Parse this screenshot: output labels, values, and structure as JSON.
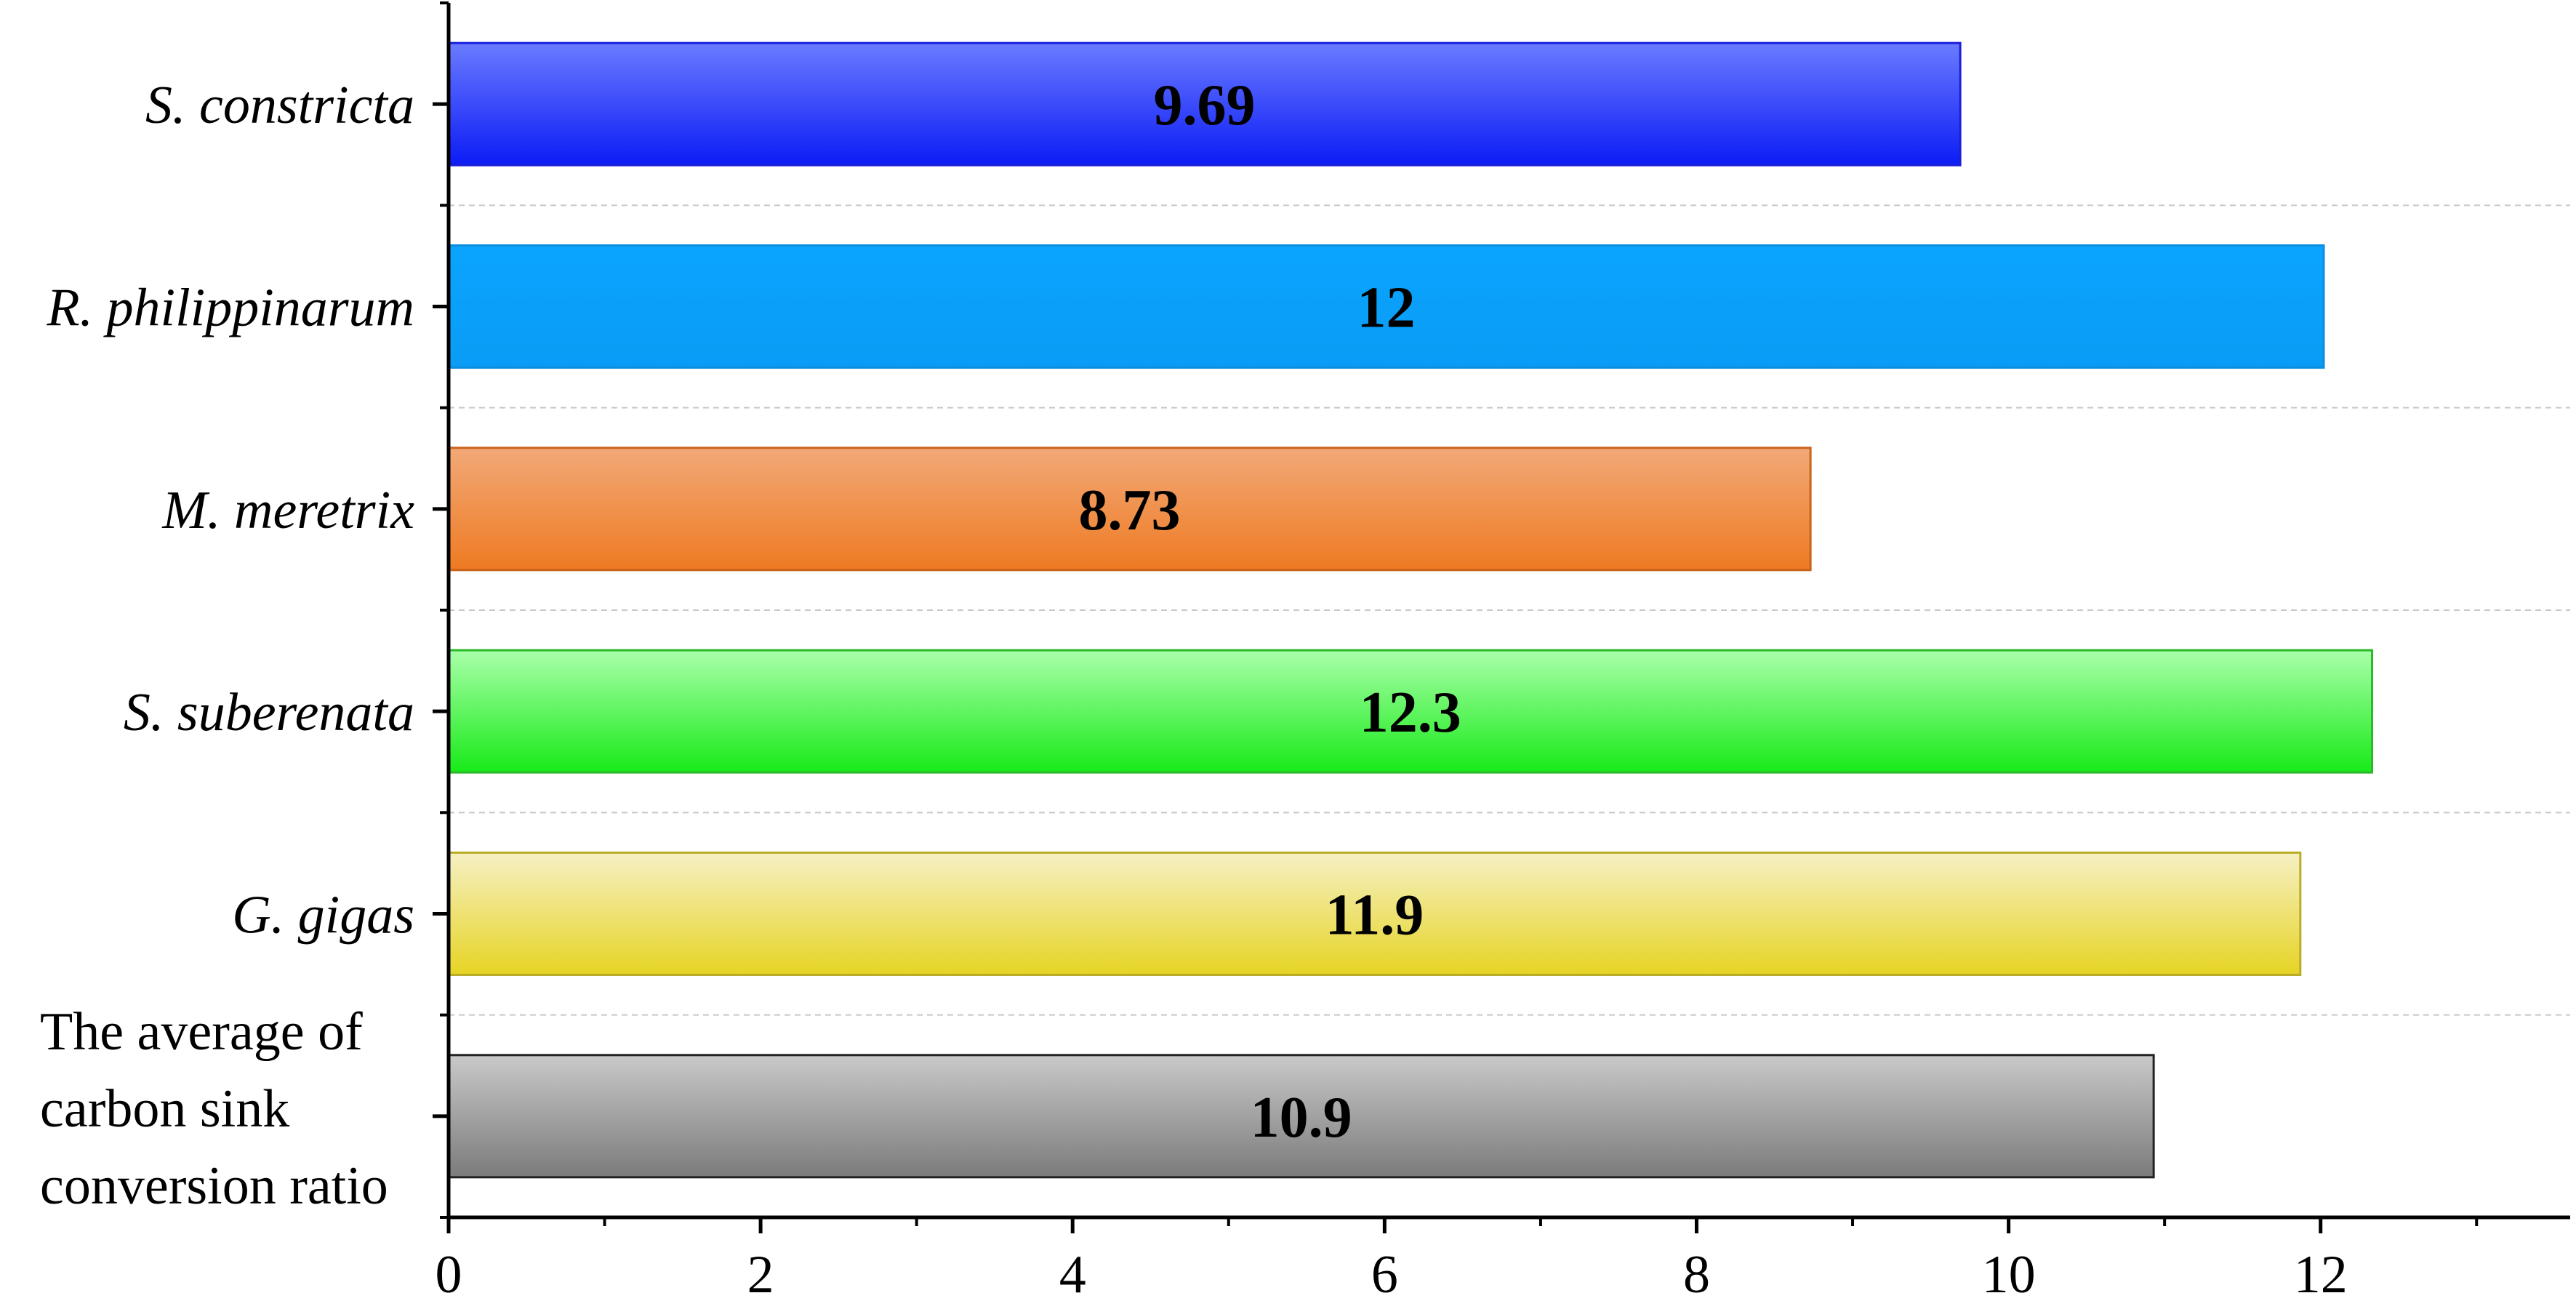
{
  "chart_data": {
    "type": "bar",
    "orientation": "horizontal",
    "title": "",
    "xlabel": "",
    "ylabel": "",
    "categories": [
      "S. constricta",
      "R. philippinarum",
      "M. meretrix",
      "S. suberenata",
      "G. gigas",
      "The average of carbon sink conversion ratio"
    ],
    "category_lines": [
      [
        "S. constricta"
      ],
      [
        "R. philippinarum"
      ],
      [
        "M. meretrix"
      ],
      [
        "S. suberenata"
      ],
      [
        "G. gigas"
      ],
      [
        "The average of",
        "carbon sink",
        "conversion ratio"
      ]
    ],
    "category_italic": [
      true,
      true,
      true,
      true,
      true,
      false
    ],
    "values": [
      9.69,
      12.02,
      8.73,
      12.33,
      11.87,
      10.93
    ],
    "value_labels": [
      "9.69",
      "12",
      "8.73",
      "12.3",
      "11.9",
      "10.9"
    ],
    "xlim": [
      0,
      13.6
    ],
    "x_ticks": [
      0,
      2,
      4,
      6,
      8,
      10,
      12
    ],
    "x_tick_labels": [
      "0",
      "2",
      "4",
      "6",
      "8",
      "10",
      "12"
    ],
    "x_minor_step": 1,
    "grid": "horizontal dashed between bars",
    "legend": "none",
    "bar_colors": [
      {
        "top": "#6a7bff",
        "bottom": "#0c1cf5",
        "stroke": "#1a1fd8"
      },
      {
        "top": "#0aa4ff",
        "bottom": "#0a9cf5",
        "stroke": "#0a8ee0"
      },
      {
        "top": "#f2a978",
        "bottom": "#ee7a22",
        "stroke": "#c8641a"
      },
      {
        "top": "#aaffaa",
        "bottom": "#18ea18",
        "stroke": "#2ab92a"
      },
      {
        "top": "#f6f0c4",
        "bottom": "#e6d424",
        "stroke": "#b9ad27"
      },
      {
        "top": "#c9c9c9",
        "bottom": "#7b7b7b",
        "stroke": "#222222"
      }
    ]
  }
}
